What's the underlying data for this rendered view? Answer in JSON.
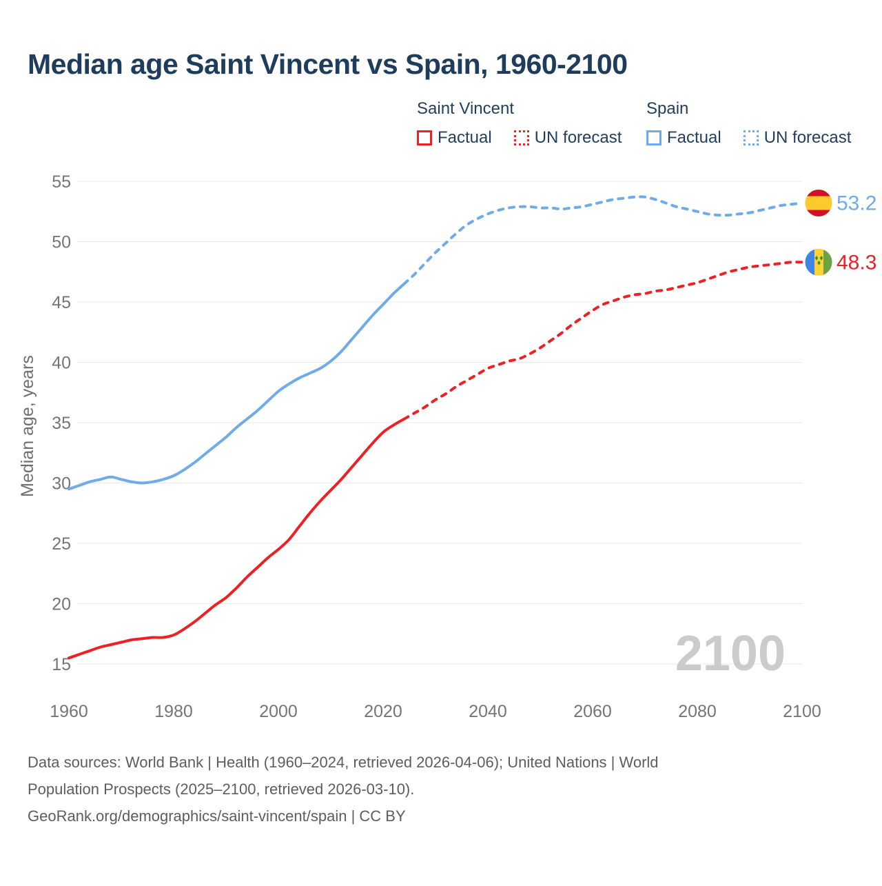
{
  "header": {
    "title": "Median age Saint Vincent vs Spain, 1960-2100"
  },
  "legend": {
    "groups": [
      {
        "title": "Saint Vincent",
        "items": [
          {
            "label": "Factual",
            "style": "solid"
          },
          {
            "label": "UN forecast",
            "style": "dotted"
          }
        ]
      },
      {
        "title": "Spain",
        "items": [
          {
            "label": "Factual",
            "style": "solid"
          },
          {
            "label": "UN forecast",
            "style": "dotted"
          }
        ]
      }
    ]
  },
  "chart_data": {
    "type": "line",
    "title": "Median age Saint Vincent vs Spain, 1960-2100",
    "xlabel": "",
    "ylabel": "Median age, years",
    "watermark": "2100",
    "xlim": [
      1960,
      2100
    ],
    "ylim": [
      15,
      55
    ],
    "xticks": [
      1960,
      1980,
      2000,
      2020,
      2040,
      2060,
      2080,
      2100
    ],
    "yticks": [
      15,
      20,
      25,
      30,
      35,
      40,
      45,
      50,
      55
    ],
    "grid": "horizontal",
    "legend_position": "top-right",
    "colors": {
      "saint_vincent": "#ed2024",
      "spain": "#6fabe8"
    },
    "series": [
      {
        "id": "saint-vincent-factual",
        "name": "Saint Vincent — Factual",
        "style": "solid",
        "color_key": "saint_vincent",
        "years": [
          1960,
          1962,
          1964,
          1966,
          1968,
          1970,
          1972,
          1974,
          1976,
          1978,
          1980,
          1982,
          1984,
          1986,
          1988,
          1990,
          1992,
          1994,
          1996,
          1998,
          2000,
          2002,
          2004,
          2006,
          2008,
          2010,
          2012,
          2014,
          2016,
          2018,
          2020,
          2022,
          2024
        ],
        "values": [
          15.5,
          15.8,
          16.1,
          16.4,
          16.6,
          16.8,
          17.0,
          17.1,
          17.2,
          17.2,
          17.4,
          17.9,
          18.5,
          19.2,
          19.9,
          20.5,
          21.3,
          22.2,
          23.0,
          23.8,
          24.5,
          25.3,
          26.4,
          27.5,
          28.5,
          29.4,
          30.3,
          31.3,
          32.3,
          33.3,
          34.2,
          34.8,
          35.3
        ]
      },
      {
        "id": "saint-vincent-forecast",
        "name": "Saint Vincent — UN forecast",
        "style": "dashed",
        "color_key": "saint_vincent",
        "years": [
          2024,
          2026,
          2028,
          2030,
          2032,
          2034,
          2036,
          2038,
          2040,
          2042,
          2044,
          2046,
          2048,
          2050,
          2052,
          2054,
          2056,
          2058,
          2060,
          2062,
          2064,
          2066,
          2068,
          2070,
          2072,
          2074,
          2076,
          2078,
          2080,
          2082,
          2084,
          2086,
          2088,
          2090,
          2092,
          2094,
          2096,
          2098,
          2100
        ],
        "values": [
          35.3,
          35.8,
          36.3,
          36.9,
          37.4,
          38.0,
          38.5,
          39.0,
          39.5,
          39.8,
          40.1,
          40.3,
          40.7,
          41.2,
          41.8,
          42.4,
          43.1,
          43.7,
          44.3,
          44.8,
          45.1,
          45.4,
          45.6,
          45.7,
          45.9,
          46.0,
          46.2,
          46.4,
          46.6,
          46.9,
          47.2,
          47.5,
          47.7,
          47.9,
          48.0,
          48.1,
          48.2,
          48.3,
          48.3
        ]
      },
      {
        "id": "spain-factual",
        "name": "Spain — Factual",
        "style": "solid",
        "color_key": "spain",
        "years": [
          1960,
          1962,
          1964,
          1966,
          1968,
          1970,
          1972,
          1974,
          1976,
          1978,
          1980,
          1982,
          1984,
          1986,
          1988,
          1990,
          1992,
          1994,
          1996,
          1998,
          2000,
          2002,
          2004,
          2006,
          2008,
          2010,
          2012,
          2014,
          2016,
          2018,
          2020,
          2022,
          2024
        ],
        "values": [
          29.5,
          29.8,
          30.1,
          30.3,
          30.5,
          30.3,
          30.1,
          30.0,
          30.1,
          30.3,
          30.6,
          31.1,
          31.7,
          32.4,
          33.1,
          33.8,
          34.6,
          35.3,
          36.0,
          36.8,
          37.6,
          38.2,
          38.7,
          39.1,
          39.5,
          40.1,
          40.9,
          41.9,
          42.9,
          43.9,
          44.8,
          45.7,
          46.5
        ]
      },
      {
        "id": "spain-forecast",
        "name": "Spain — UN forecast",
        "style": "dashed",
        "color_key": "spain",
        "years": [
          2024,
          2026,
          2028,
          2030,
          2032,
          2034,
          2036,
          2038,
          2040,
          2042,
          2044,
          2046,
          2048,
          2050,
          2052,
          2054,
          2056,
          2058,
          2060,
          2062,
          2064,
          2066,
          2068,
          2070,
          2072,
          2074,
          2076,
          2078,
          2080,
          2082,
          2084,
          2086,
          2088,
          2090,
          2092,
          2094,
          2096,
          2098,
          2100
        ],
        "values": [
          46.5,
          47.3,
          48.2,
          49.1,
          49.9,
          50.7,
          51.4,
          51.9,
          52.3,
          52.6,
          52.8,
          52.9,
          52.9,
          52.8,
          52.8,
          52.7,
          52.8,
          52.9,
          53.1,
          53.3,
          53.5,
          53.6,
          53.7,
          53.7,
          53.5,
          53.2,
          52.9,
          52.7,
          52.5,
          52.3,
          52.2,
          52.2,
          52.3,
          52.4,
          52.6,
          52.8,
          53.0,
          53.1,
          53.2
        ]
      }
    ],
    "end_labels": [
      {
        "country": "Spain",
        "value": 53.2,
        "flag": "spain-flag-icon",
        "color_key": "spain"
      },
      {
        "country": "Saint Vincent",
        "value": 48.3,
        "flag": "saint-vincent-flag-icon",
        "color_key": "saint_vincent"
      }
    ]
  },
  "footer": {
    "lines": [
      "Data sources: World Bank | Health (1960–2024, retrieved 2026-04-06); United Nations | World",
      "Population Prospects (2025–2100, retrieved 2026-03-10).",
      "GeoRank.org/demographics/saint-vincent/spain | CC BY"
    ]
  }
}
